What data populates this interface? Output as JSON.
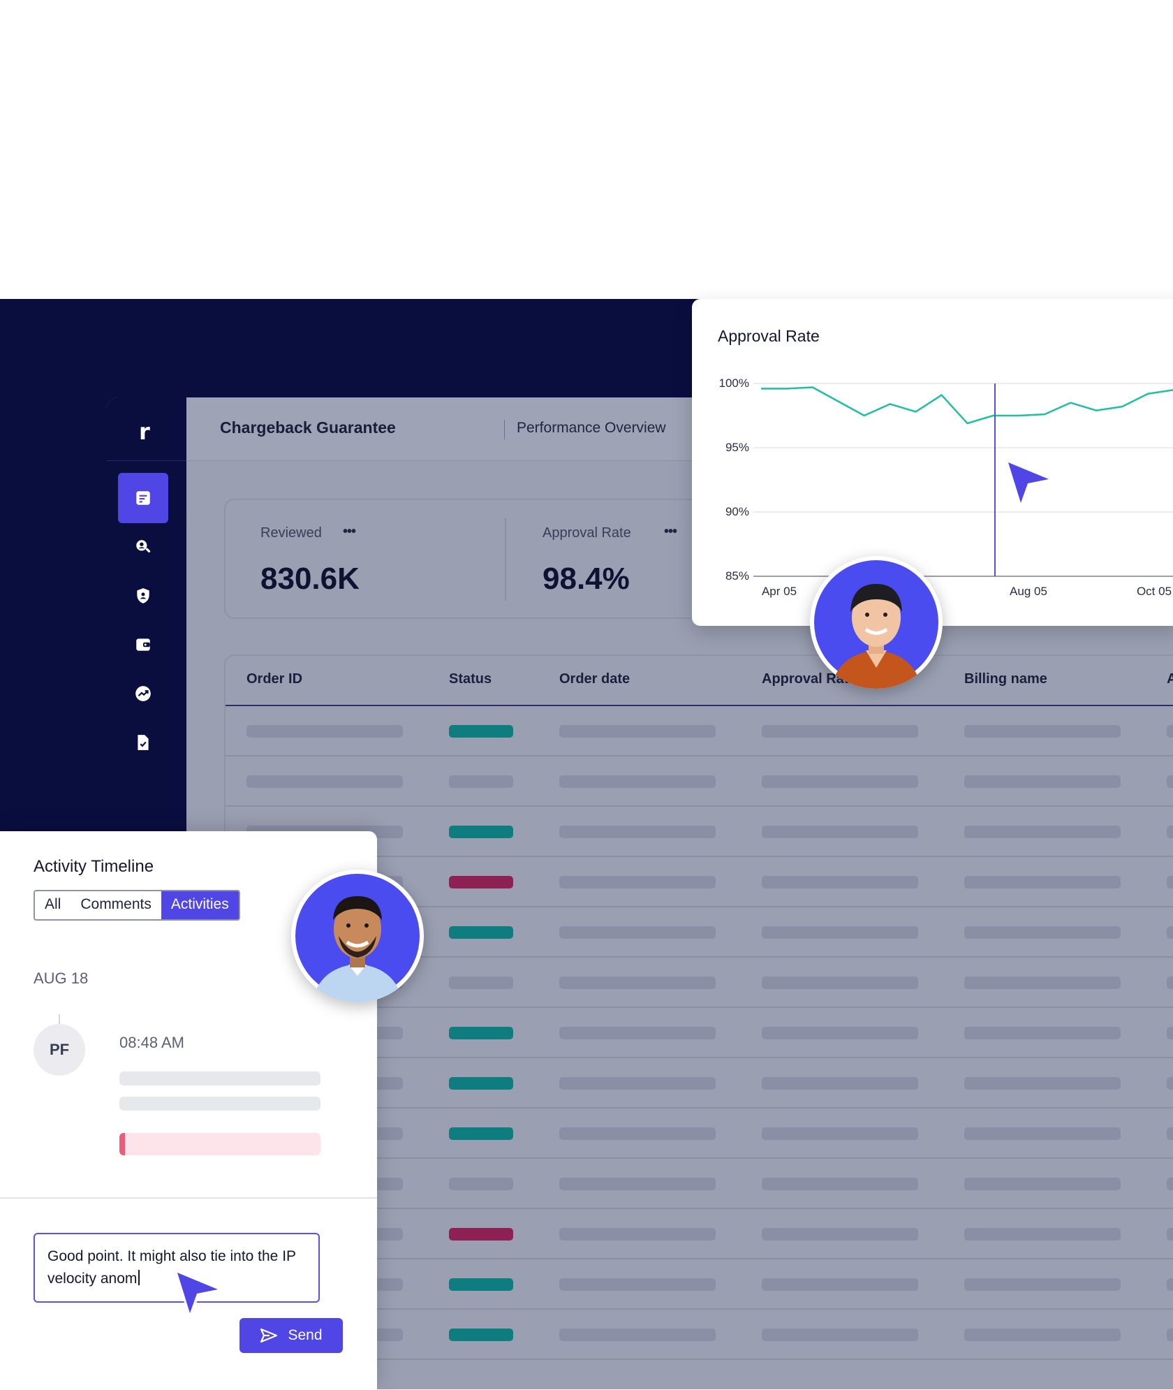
{
  "app": {
    "logo_glyph": "r",
    "title": "Chargeback Guarantee",
    "subtitle": "Performance Overview"
  },
  "sidebar": {
    "items": [
      {
        "icon": "report-icon",
        "active": true
      },
      {
        "icon": "user-search-icon",
        "active": false
      },
      {
        "icon": "shield-icon",
        "active": false
      },
      {
        "icon": "wallet-icon",
        "active": false
      },
      {
        "icon": "trend-icon",
        "active": false
      },
      {
        "icon": "document-check-icon",
        "active": false
      }
    ]
  },
  "kpis": [
    {
      "label": "Reviewed",
      "value": "830.6K",
      "menu": "•••"
    },
    {
      "label": "Approval Rate",
      "value": "98.4%",
      "menu": "•••"
    }
  ],
  "table": {
    "columns": [
      "Order ID",
      "Status",
      "Order date",
      "Approval Rate",
      "Billing name",
      "A"
    ],
    "row_status": [
      "approved",
      "none",
      "approved",
      "declined",
      "approved",
      "none",
      "approved",
      "approved",
      "approved",
      "none",
      "declined",
      "approved",
      "approved"
    ],
    "status_colors": {
      "approved": "#0f7c80",
      "declined": "#8e2153",
      "none": "#8a8fa6"
    }
  },
  "chart_data": {
    "type": "line",
    "title": "Approval Rate",
    "ylim": [
      85,
      100
    ],
    "yticks": [
      "100%",
      "95%",
      "90%",
      "85%"
    ],
    "xticks": [
      "Apr 05",
      "Aug 05",
      "Oct 05"
    ],
    "grid": true,
    "line_color": "#1fbf9f",
    "cursor_color": "#5b4be0",
    "series": [
      {
        "values": [
          99.6,
          99.6,
          99.7,
          98.6,
          97.5,
          98.4,
          97.8,
          99.1,
          96.9,
          97.5,
          97.5,
          97.6,
          98.5,
          97.9,
          98.2,
          99.2,
          99.5
        ]
      }
    ],
    "highlight_x": "Aug 05"
  },
  "activity": {
    "title": "Activity Timeline",
    "tabs": [
      {
        "label": "All",
        "active": false
      },
      {
        "label": "Comments",
        "active": false
      },
      {
        "label": "Activities",
        "active": true
      }
    ],
    "date": "AUG 18",
    "initials": "PF",
    "time": "08:48 AM",
    "comment_text": "Good point. It might also tie into the IP velocity anom",
    "send_label": "Send"
  },
  "colors": {
    "accent": "#4f46e5",
    "navy": "#0a0e3f"
  }
}
